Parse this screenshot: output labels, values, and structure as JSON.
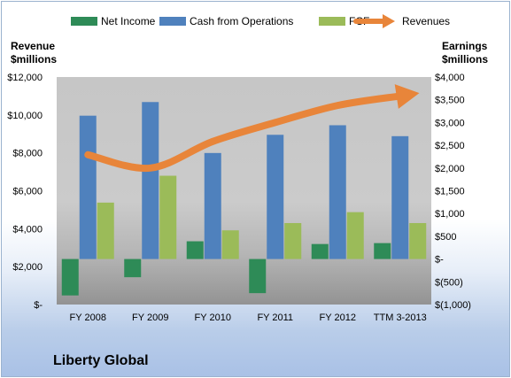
{
  "chart_data": {
    "type": "bar",
    "categories": [
      "FY 2008",
      "FY 2009",
      "FY 2010",
      "FY 2011",
      "FY 2012",
      "TTM 3-2013"
    ],
    "left_axis": {
      "title_line1": "Revenue",
      "title_line2": "$millions",
      "ylim": [
        0,
        12000
      ],
      "ticks": [
        0,
        2000,
        4000,
        6000,
        8000,
        10000,
        12000
      ],
      "tick_labels": [
        "$-",
        "$2,000",
        "$4,000",
        "$6,000",
        "$8,000",
        "$10,000",
        "$12,000"
      ]
    },
    "right_axis": {
      "title_line1": "Earnings",
      "title_line2": "$millions",
      "ylim": [
        -1000,
        4000
      ],
      "ticks": [
        -1000,
        -500,
        0,
        500,
        1000,
        1500,
        2000,
        2500,
        3000,
        3500,
        4000
      ],
      "tick_labels": [
        "$(1,000)",
        "$(500)",
        "$-",
        "$500",
        "$1,000",
        "$1,500",
        "$2,000",
        "$2,500",
        "$3,000",
        "$3,500",
        "$4,000"
      ]
    },
    "series": [
      {
        "name": "Net Income",
        "axis": "right",
        "kind": "bar",
        "color": "#2e8b57",
        "values": [
          -800,
          -400,
          390,
          -750,
          330,
          350
        ]
      },
      {
        "name": "Cash from Operations",
        "axis": "right",
        "kind": "bar",
        "color": "#4f81bd",
        "values": [
          3150,
          3450,
          2330,
          2730,
          2940,
          2700
        ]
      },
      {
        "name": "FCF",
        "axis": "right",
        "kind": "bar",
        "color": "#9bbb59",
        "values": [
          1240,
          1830,
          630,
          790,
          1030,
          790
        ]
      },
      {
        "name": "Revenues",
        "axis": "left",
        "kind": "arrow",
        "color": "#e8853a",
        "values": [
          7900,
          7200,
          8600,
          9600,
          10500,
          11000
        ]
      }
    ],
    "legend_position": "top",
    "grid": false
  },
  "company": "Liberty Global"
}
